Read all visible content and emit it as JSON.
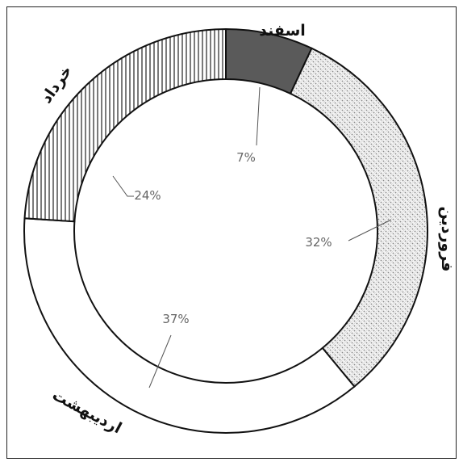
{
  "chart_data": {
    "type": "pie",
    "variant": "donut",
    "categories": [
      "اسفند",
      "فروردین",
      "اردیبهشت",
      "خرداد"
    ],
    "values": [
      7,
      32,
      37,
      24
    ],
    "value_labels": [
      "7%",
      "32%",
      "37%",
      "24%"
    ],
    "fills": [
      "dark-solid",
      "dotted-crosshatch",
      "plain-white",
      "vertical-stripes"
    ],
    "colors": {
      "dark": "#5a5a5a",
      "outline": "#111111",
      "label": "#666666",
      "leader": "#555555"
    },
    "legend": "none (labels placed on ring)"
  }
}
